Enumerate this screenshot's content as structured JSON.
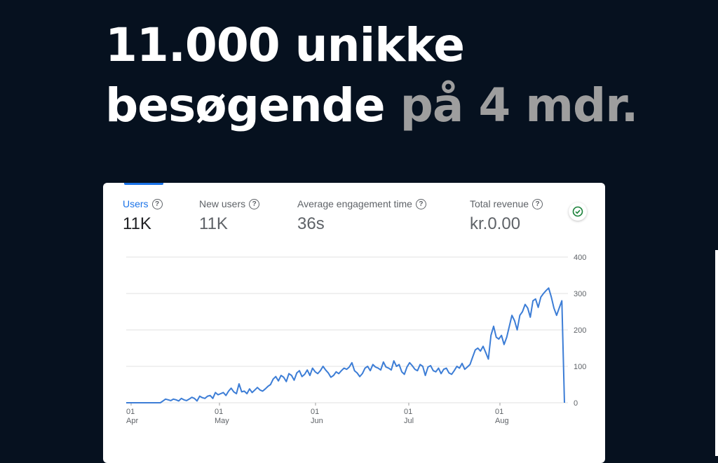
{
  "headline": {
    "line1": "11.000 unikke",
    "line2_main": "besøgende",
    "line2_muted": "på 4 mdr."
  },
  "metrics": [
    {
      "label": "Users",
      "value": "11K"
    },
    {
      "label": "New users",
      "value": "11K"
    },
    {
      "label": "Average engagement time",
      "value": "36s"
    },
    {
      "label": "Total revenue",
      "value": "kr.0.00"
    }
  ],
  "icons": {
    "help": "help-circle-icon",
    "status": "check-circle-icon"
  },
  "colors": {
    "accent": "#1a73e8",
    "line": "#3c7dd6",
    "status": "#188038",
    "background": "#06111f"
  },
  "chart_data": {
    "type": "line",
    "title": "",
    "xlabel": "",
    "ylabel": "",
    "ylim": [
      0,
      400
    ],
    "yticks": [
      400,
      300,
      200,
      100,
      0
    ],
    "xticks": [
      {
        "day": "01",
        "month": "Apr"
      },
      {
        "day": "01",
        "month": "May"
      },
      {
        "day": "01",
        "month": "Jun"
      },
      {
        "day": "01",
        "month": "Jul"
      },
      {
        "day": "01",
        "month": "Aug"
      }
    ],
    "grid": true,
    "series": [
      {
        "values": [
          0,
          0,
          0,
          0,
          0,
          0,
          0,
          0,
          0,
          0,
          0,
          0,
          0,
          0,
          5,
          10,
          8,
          6,
          10,
          8,
          5,
          12,
          8,
          6,
          10,
          15,
          12,
          5,
          18,
          14,
          12,
          18,
          20,
          12,
          28,
          22,
          25,
          28,
          20,
          32,
          40,
          30,
          25,
          52,
          30,
          32,
          25,
          38,
          28,
          35,
          42,
          35,
          32,
          38,
          45,
          50,
          65,
          72,
          60,
          75,
          70,
          58,
          80,
          75,
          62,
          82,
          88,
          72,
          78,
          90,
          75,
          95,
          85,
          80,
          88,
          100,
          90,
          82,
          70,
          75,
          85,
          80,
          88,
          95,
          92,
          98,
          110,
          88,
          82,
          72,
          80,
          95,
          100,
          88,
          105,
          98,
          95,
          90,
          112,
          98,
          95,
          90,
          115,
          100,
          105,
          85,
          78,
          98,
          110,
          102,
          92,
          88,
          105,
          100,
          75,
          98,
          102,
          88,
          85,
          95,
          80,
          92,
          95,
          82,
          78,
          88,
          100,
          95,
          108,
          92,
          98,
          105,
          125,
          145,
          150,
          142,
          155,
          138,
          120,
          185,
          210,
          180,
          175,
          185,
          160,
          180,
          210,
          240,
          225,
          200,
          240,
          250,
          270,
          260,
          235,
          280,
          285,
          262,
          290,
          300,
          308,
          315,
          290,
          260,
          240,
          260,
          280,
          0
        ]
      }
    ]
  }
}
